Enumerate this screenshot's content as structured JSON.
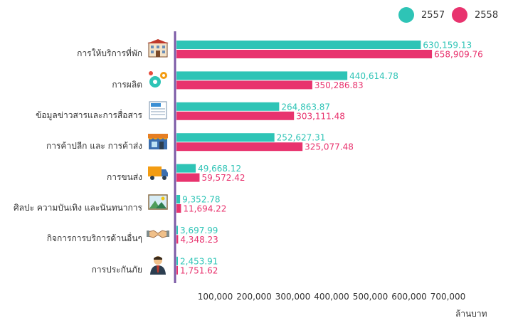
{
  "legend": [
    {
      "name": "2557",
      "color": "#2ec4b6"
    },
    {
      "name": "2558",
      "color": "#e8336e"
    }
  ],
  "chart_data": {
    "type": "bar",
    "orientation": "horizontal",
    "categories": [
      "การให้บริการที่พัก",
      "การผลิต",
      "ข้อมูลข่าวสารและการสื่อสาร",
      "การค้าปลีก และ การค้าส่ง",
      "การขนส่ง",
      "ศิลปะ ความบันเทิง และนันทนาการ",
      "กิจการการบริการด้านอื่นๆ",
      "การประกันภัย"
    ],
    "category_icons": [
      "hotel-icon",
      "gears-icon",
      "newspaper-icon",
      "storefront-icon",
      "truck-icon",
      "landscape-picture-icon",
      "handshake-icon",
      "businessman-icon"
    ],
    "series": [
      {
        "name": "2557",
        "color": "#2ec4b6",
        "values": [
          630159.13,
          440614.78,
          264863.87,
          252627.31,
          49668.12,
          9352.78,
          3697.99,
          2453.91
        ],
        "labels": [
          "630,159.13",
          "440,614.78",
          "264,863.87",
          "252,627.31",
          "49,668.12",
          "9,352.78",
          "3,697.99",
          "2,453.91"
        ]
      },
      {
        "name": "2558",
        "color": "#e8336e",
        "values": [
          658909.76,
          350286.83,
          303111.48,
          325077.48,
          59572.42,
          11694.22,
          4348.23,
          1751.62
        ],
        "labels": [
          "658,909.76",
          "350,286.83",
          "303,111.48",
          "325,077.48",
          "59,572.42",
          "11,694.22",
          "4,348.23",
          "1,751.62"
        ]
      }
    ],
    "xticks": [
      "100,000",
      "200,000",
      "300,000",
      "400,000",
      "500,000",
      "600,000",
      "700,000"
    ],
    "xtick_values": [
      100000,
      200000,
      300000,
      400000,
      500000,
      600000,
      700000
    ],
    "xlabel": "ล้านบาท",
    "xlim": [
      0,
      700000
    ],
    "axis_color": "#7b5aa6",
    "grid": false,
    "legend_position": "top-right"
  }
}
